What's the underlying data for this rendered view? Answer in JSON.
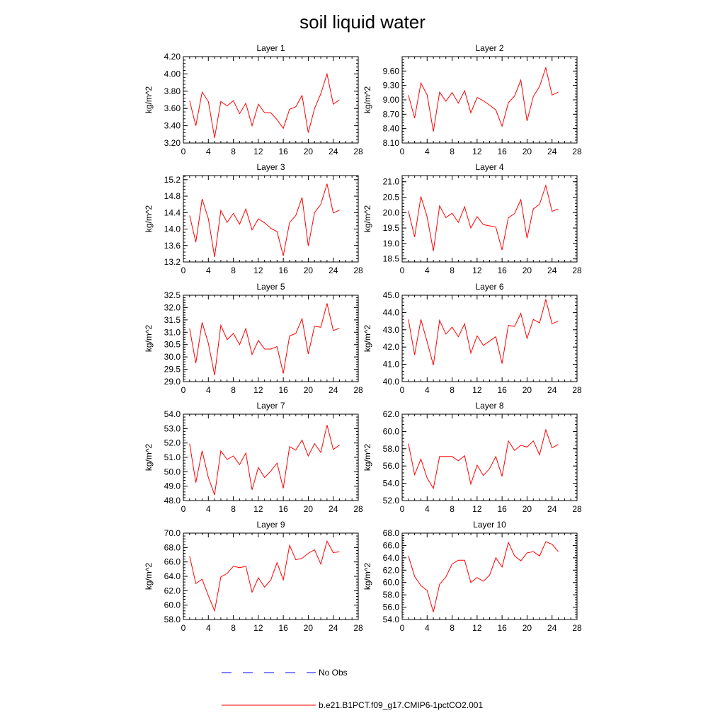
{
  "title": "soil liquid water",
  "colors": {
    "model_line": "#ff0000",
    "obs_line": "#0000ff",
    "axis": "#000000",
    "background": "#ffffff"
  },
  "legend": {
    "obs_label": "No Obs",
    "model_label": "b.e21.B1PCT.f09_g17.CMIP6-1pctCO2.001"
  },
  "chart_data": [
    {
      "type": "line",
      "title": "Layer 1",
      "ylabel": "kg/m^2",
      "xlim": [
        0,
        28
      ],
      "xticks": [
        0,
        4,
        8,
        12,
        16,
        20,
        24,
        28
      ],
      "ylim": [
        3.2,
        4.2
      ],
      "yticks": [
        "3.20",
        "3.40",
        "3.60",
        "3.80",
        "4.00",
        "4.20"
      ],
      "x": [
        1,
        2,
        3,
        4,
        5,
        6,
        7,
        8,
        9,
        10,
        11,
        12,
        13,
        14,
        15,
        16,
        17,
        18,
        19,
        20,
        21,
        22,
        23,
        24,
        25
      ],
      "series": [
        {
          "name": "b.e21.B1PCT.f09_g17.CMIP6-1pctCO2.001",
          "values": [
            3.69,
            3.4,
            3.79,
            3.68,
            3.26,
            3.68,
            3.63,
            3.69,
            3.54,
            3.66,
            3.4,
            3.65,
            3.55,
            3.55,
            3.47,
            3.37,
            3.59,
            3.62,
            3.75,
            3.32,
            3.6,
            3.77,
            4.0,
            3.65,
            3.7
          ]
        }
      ]
    },
    {
      "type": "line",
      "title": "Layer 2",
      "ylabel": "kg/m^2",
      "xlim": [
        0,
        28
      ],
      "xticks": [
        0,
        4,
        8,
        12,
        16,
        20,
        24,
        28
      ],
      "ylim": [
        8.1,
        9.9
      ],
      "yticks": [
        "8.10",
        "8.40",
        "8.70",
        "9.00",
        "9.30",
        "9.60"
      ],
      "x": [
        1,
        2,
        3,
        4,
        5,
        6,
        7,
        8,
        9,
        10,
        11,
        12,
        13,
        14,
        15,
        16,
        17,
        18,
        19,
        20,
        21,
        22,
        23,
        24,
        25
      ],
      "series": [
        {
          "name": "b.e21.B1PCT.f09_g17.CMIP6-1pctCO2.001",
          "values": [
            9.1,
            8.62,
            9.35,
            9.1,
            8.34,
            9.16,
            8.97,
            9.15,
            8.93,
            9.19,
            8.73,
            9.05,
            8.98,
            8.89,
            8.79,
            8.45,
            8.94,
            9.08,
            9.41,
            8.56,
            9.07,
            9.28,
            9.67,
            9.1,
            9.16
          ]
        }
      ]
    },
    {
      "type": "line",
      "title": "Layer 3",
      "ylabel": "kg/m^2",
      "xlim": [
        0,
        28
      ],
      "xticks": [
        0,
        4,
        8,
        12,
        16,
        20,
        24,
        28
      ],
      "ylim": [
        13.2,
        15.3
      ],
      "yticks": [
        "13.2",
        "13.6",
        "14.0",
        "14.4",
        "14.8",
        "15.2"
      ],
      "x": [
        1,
        2,
        3,
        4,
        5,
        6,
        7,
        8,
        9,
        10,
        11,
        12,
        13,
        14,
        15,
        16,
        17,
        18,
        19,
        20,
        21,
        22,
        23,
        24,
        25
      ],
      "series": [
        {
          "name": "b.e21.B1PCT.f09_g17.CMIP6-1pctCO2.001",
          "values": [
            14.33,
            13.68,
            14.73,
            14.25,
            13.32,
            14.45,
            14.16,
            14.38,
            14.12,
            14.49,
            13.98,
            14.25,
            14.15,
            14.02,
            13.94,
            13.35,
            14.16,
            14.33,
            14.77,
            13.59,
            14.4,
            14.6,
            15.1,
            14.39,
            14.46
          ]
        }
      ]
    },
    {
      "type": "line",
      "title": "Layer 4",
      "ylabel": "kg/m^2",
      "xlim": [
        0,
        28
      ],
      "xticks": [
        0,
        4,
        8,
        12,
        16,
        20,
        24,
        28
      ],
      "ylim": [
        18.4,
        21.2
      ],
      "yticks": [
        "18.5",
        "19.0",
        "19.5",
        "20.0",
        "20.5",
        "21.0"
      ],
      "x": [
        1,
        2,
        3,
        4,
        5,
        6,
        7,
        8,
        9,
        10,
        11,
        12,
        13,
        14,
        15,
        16,
        17,
        18,
        19,
        20,
        21,
        22,
        23,
        24,
        25
      ],
      "series": [
        {
          "name": "b.e21.B1PCT.f09_g17.CMIP6-1pctCO2.001",
          "values": [
            20.06,
            19.21,
            20.52,
            19.86,
            18.75,
            20.22,
            19.84,
            19.98,
            19.68,
            20.19,
            19.5,
            19.87,
            19.61,
            19.57,
            19.53,
            18.79,
            19.83,
            19.97,
            20.42,
            19.17,
            20.12,
            20.27,
            20.88,
            20.04,
            20.12
          ]
        }
      ]
    },
    {
      "type": "line",
      "title": "Layer 5",
      "ylabel": "kg/m^2",
      "xlim": [
        0,
        28
      ],
      "xticks": [
        0,
        4,
        8,
        12,
        16,
        20,
        24,
        28
      ],
      "ylim": [
        29.0,
        32.5
      ],
      "yticks": [
        "29.0",
        "29.5",
        "30.0",
        "30.5",
        "31.0",
        "31.5",
        "32.0",
        "32.5"
      ],
      "x": [
        1,
        2,
        3,
        4,
        5,
        6,
        7,
        8,
        9,
        10,
        11,
        12,
        13,
        14,
        15,
        16,
        17,
        18,
        19,
        20,
        21,
        22,
        23,
        24,
        25
      ],
      "series": [
        {
          "name": "b.e21.B1PCT.f09_g17.CMIP6-1pctCO2.001",
          "values": [
            31.15,
            29.75,
            31.4,
            30.55,
            29.26,
            31.28,
            30.7,
            30.95,
            30.5,
            31.15,
            30.1,
            30.67,
            30.32,
            30.32,
            30.42,
            29.33,
            30.85,
            30.95,
            31.55,
            30.12,
            31.25,
            31.2,
            32.17,
            31.07,
            31.16
          ]
        }
      ]
    },
    {
      "type": "line",
      "title": "Layer 6",
      "ylabel": "kg/m^2",
      "xlim": [
        0,
        28
      ],
      "xticks": [
        0,
        4,
        8,
        12,
        16,
        20,
        24,
        28
      ],
      "ylim": [
        40.0,
        45.0
      ],
      "yticks": [
        "40.0",
        "41.0",
        "42.0",
        "43.0",
        "44.0",
        "45.0"
      ],
      "x": [
        1,
        2,
        3,
        4,
        5,
        6,
        7,
        8,
        9,
        10,
        11,
        12,
        13,
        14,
        15,
        16,
        17,
        18,
        19,
        20,
        21,
        22,
        23,
        24,
        25
      ],
      "series": [
        {
          "name": "b.e21.B1PCT.f09_g17.CMIP6-1pctCO2.001",
          "values": [
            43.6,
            41.55,
            43.6,
            42.3,
            40.95,
            43.55,
            42.75,
            43.15,
            42.6,
            43.35,
            41.65,
            42.65,
            42.1,
            42.35,
            42.6,
            41.05,
            43.25,
            43.2,
            43.95,
            42.5,
            43.6,
            43.4,
            44.75,
            43.35,
            43.5
          ]
        }
      ]
    },
    {
      "type": "line",
      "title": "Layer 7",
      "ylabel": "kg/m^2",
      "xlim": [
        0,
        28
      ],
      "xticks": [
        0,
        4,
        8,
        12,
        16,
        20,
        24,
        28
      ],
      "ylim": [
        48.0,
        54.0
      ],
      "yticks": [
        "48.0",
        "49.0",
        "50.0",
        "51.0",
        "52.0",
        "53.0",
        "54.0"
      ],
      "x": [
        1,
        2,
        3,
        4,
        5,
        6,
        7,
        8,
        9,
        10,
        11,
        12,
        13,
        14,
        15,
        16,
        17,
        18,
        19,
        20,
        21,
        22,
        23,
        24,
        25
      ],
      "series": [
        {
          "name": "b.e21.B1PCT.f09_g17.CMIP6-1pctCO2.001",
          "values": [
            51.95,
            49.25,
            51.45,
            49.6,
            48.4,
            51.45,
            50.85,
            51.1,
            50.5,
            51.3,
            48.75,
            50.3,
            49.6,
            50.05,
            50.6,
            48.85,
            51.75,
            51.5,
            52.2,
            51.1,
            51.95,
            51.35,
            53.25,
            51.55,
            51.85
          ]
        }
      ]
    },
    {
      "type": "line",
      "title": "Layer 8",
      "ylabel": "kg/m^2",
      "xlim": [
        0,
        28
      ],
      "xticks": [
        0,
        4,
        8,
        12,
        16,
        20,
        24,
        28
      ],
      "ylim": [
        52.0,
        62.0
      ],
      "yticks": [
        "52.0",
        "54.0",
        "56.0",
        "58.0",
        "60.0",
        "62.0"
      ],
      "x": [
        1,
        2,
        3,
        4,
        5,
        6,
        7,
        8,
        9,
        10,
        11,
        12,
        13,
        14,
        15,
        16,
        17,
        18,
        19,
        20,
        21,
        22,
        23,
        24,
        25
      ],
      "series": [
        {
          "name": "b.e21.B1PCT.f09_g17.CMIP6-1pctCO2.001",
          "values": [
            58.6,
            55.0,
            56.8,
            54.6,
            53.4,
            57.1,
            57.1,
            57.1,
            56.6,
            57.2,
            53.9,
            56.1,
            54.9,
            55.7,
            57.1,
            54.8,
            58.9,
            57.8,
            58.4,
            58.2,
            58.9,
            57.3,
            60.2,
            58.1,
            58.5
          ]
        }
      ]
    },
    {
      "type": "line",
      "title": "Layer 9",
      "ylabel": "kg/m^2",
      "xlim": [
        0,
        28
      ],
      "xticks": [
        0,
        4,
        8,
        12,
        16,
        20,
        24,
        28
      ],
      "ylim": [
        58.0,
        70.0
      ],
      "yticks": [
        "58.0",
        "60.0",
        "62.0",
        "64.0",
        "66.0",
        "68.0",
        "70.0"
      ],
      "x": [
        1,
        2,
        3,
        4,
        5,
        6,
        7,
        8,
        9,
        10,
        11,
        12,
        13,
        14,
        15,
        16,
        17,
        18,
        19,
        20,
        21,
        22,
        23,
        24,
        25
      ],
      "series": [
        {
          "name": "b.e21.B1PCT.f09_g17.CMIP6-1pctCO2.001",
          "values": [
            66.8,
            63.0,
            63.6,
            61.3,
            59.2,
            63.9,
            64.4,
            65.4,
            65.2,
            65.4,
            61.8,
            63.8,
            62.5,
            63.5,
            65.9,
            63.5,
            68.3,
            66.3,
            66.5,
            67.2,
            67.7,
            65.7,
            68.9,
            67.3,
            67.4
          ]
        }
      ]
    },
    {
      "type": "line",
      "title": "Layer 10",
      "ylabel": "kg/m^2",
      "xlim": [
        0,
        28
      ],
      "xticks": [
        0,
        4,
        8,
        12,
        16,
        20,
        24,
        28
      ],
      "ylim": [
        54.0,
        68.0
      ],
      "yticks": [
        "54.0",
        "56.0",
        "58.0",
        "60.0",
        "62.0",
        "64.0",
        "66.0",
        "68.0"
      ],
      "x": [
        1,
        2,
        3,
        4,
        5,
        6,
        7,
        8,
        9,
        10,
        11,
        12,
        13,
        14,
        15,
        16,
        17,
        18,
        19,
        20,
        21,
        22,
        23,
        24,
        25
      ],
      "series": [
        {
          "name": "b.e21.B1PCT.f09_g17.CMIP6-1pctCO2.001",
          "values": [
            64.3,
            61.0,
            59.5,
            58.7,
            55.2,
            59.7,
            60.9,
            63.0,
            63.6,
            63.6,
            60.0,
            60.8,
            60.2,
            61.2,
            64.0,
            62.5,
            66.5,
            64.3,
            63.5,
            64.8,
            65.0,
            64.3,
            66.6,
            66.2,
            65.0
          ]
        }
      ]
    }
  ]
}
